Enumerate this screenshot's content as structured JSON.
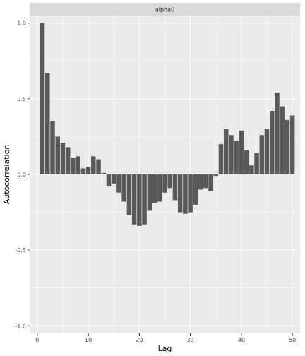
{
  "chart_data": {
    "type": "bar",
    "facet_label": "alpha0",
    "xlabel": "Lag",
    "ylabel": "Autocorrelation",
    "xlim": [
      -1.5,
      51.5
    ],
    "ylim": [
      -1.05,
      1.05
    ],
    "x_ticks": [
      0,
      10,
      20,
      30,
      40,
      50
    ],
    "y_ticks": [
      -1.0,
      -0.5,
      0.0,
      0.5,
      1.0
    ],
    "x_tick_labels": [
      "0",
      "10",
      "20",
      "30",
      "40",
      "50"
    ],
    "y_tick_labels": [
      "-1.0",
      "-0.5",
      "0.0",
      "0.5",
      "1.0"
    ],
    "grid": true,
    "bar_color": "#595959",
    "panel_background": "#ebebeb",
    "strip_background": "#d9d9d9",
    "x": [
      1,
      2,
      3,
      4,
      5,
      6,
      7,
      8,
      9,
      10,
      11,
      12,
      13,
      14,
      15,
      16,
      17,
      18,
      19,
      20,
      21,
      22,
      23,
      24,
      25,
      26,
      27,
      28,
      29,
      30,
      31,
      32,
      33,
      34,
      35,
      36,
      37,
      38,
      39,
      40,
      41,
      42,
      43,
      44,
      45,
      46,
      47,
      48,
      49,
      50
    ],
    "values": [
      1.0,
      0.67,
      0.35,
      0.25,
      0.21,
      0.18,
      0.11,
      0.12,
      0.04,
      0.05,
      0.12,
      0.1,
      0.01,
      -0.08,
      -0.06,
      -0.12,
      -0.18,
      -0.27,
      -0.33,
      -0.34,
      -0.33,
      -0.24,
      -0.19,
      -0.18,
      -0.12,
      -0.09,
      -0.17,
      -0.25,
      -0.26,
      -0.25,
      -0.2,
      -0.1,
      -0.09,
      -0.11,
      -0.01,
      0.2,
      0.3,
      0.26,
      0.22,
      0.29,
      0.16,
      0.06,
      0.14,
      0.26,
      0.3,
      0.42,
      0.54,
      0.45,
      0.36,
      0.39
    ]
  }
}
